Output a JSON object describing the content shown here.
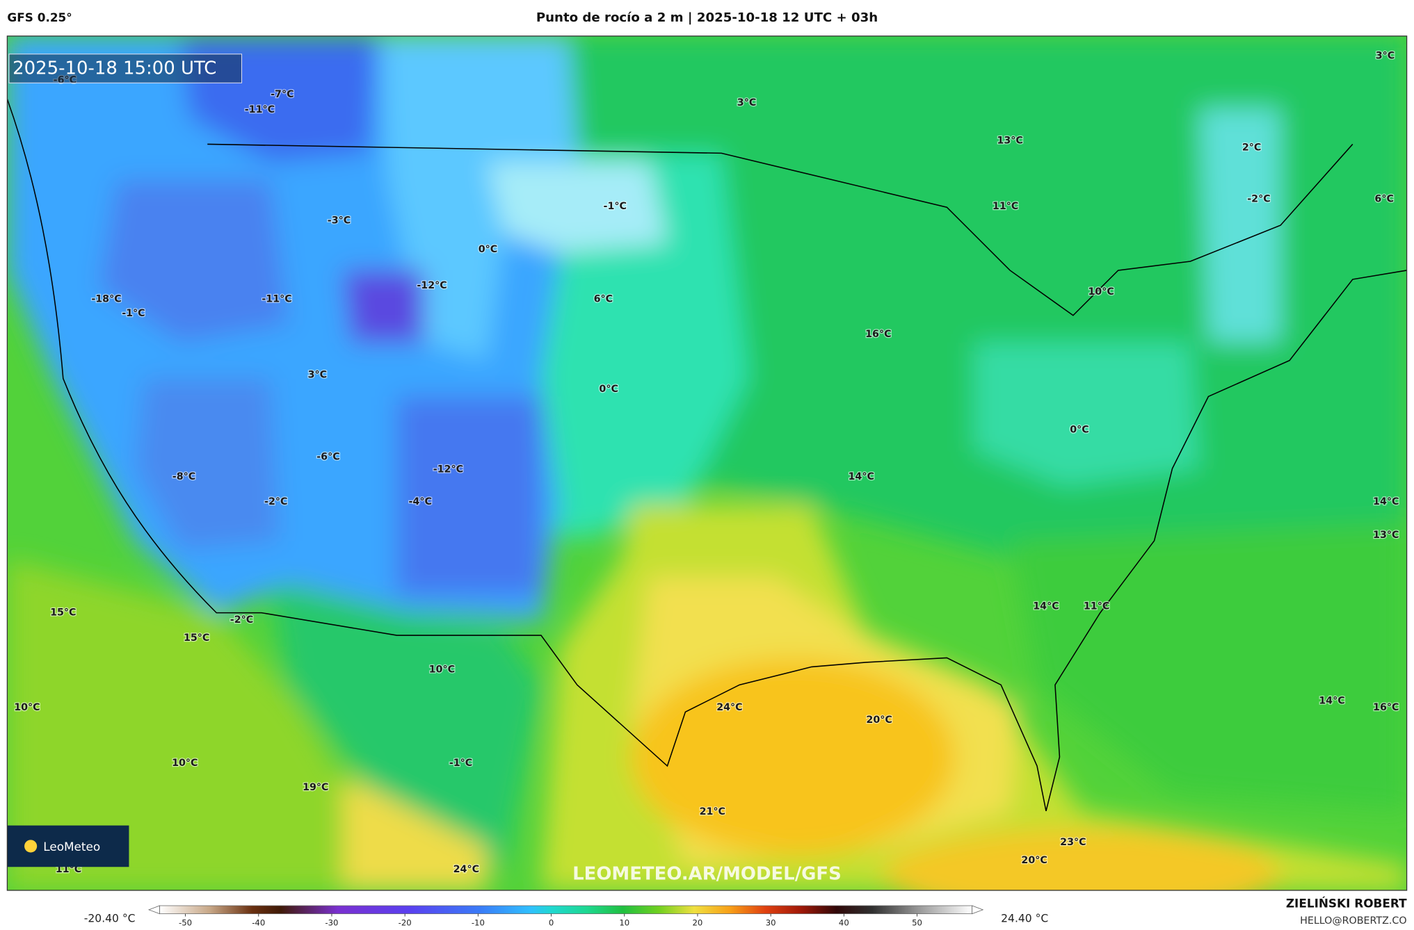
{
  "header": {
    "model": "GFS 0.25°",
    "title": "Punto de rocío a 2 m | 2025-10-18 12 UTC + 03h"
  },
  "map": {
    "timestamp": "2025-10-18 15:00 UTC",
    "labels": [
      "-6°C",
      "-7°C",
      "-11°C",
      "3°C",
      "13°C",
      "2°C",
      "-2°C",
      "6°C",
      "3°C",
      "-1°C",
      "11°C",
      "-3°C",
      "0°C",
      "-12°C",
      "-11°C",
      "-18°C",
      "-1°C",
      "6°C",
      "10°C",
      "16°C",
      "3°C",
      "0°C",
      "0°C",
      "-6°C",
      "-8°C",
      "-12°C",
      "14°C",
      "-2°C",
      "-4°C",
      "14°C",
      "13°C",
      "15°C",
      "-2°C",
      "14°C",
      "11°C",
      "15°C",
      "10°C",
      "24°C",
      "20°C",
      "14°C",
      "16°C",
      "10°C",
      "10°C",
      "-1°C",
      "19°C",
      "21°C",
      "23°C",
      "20°C",
      "24°C",
      "11°C"
    ],
    "watermark": "LEOMETEO.AR/MODEL/GFS",
    "logo": "LeoMeteo"
  },
  "colorbar": {
    "min_label": "-20.40 °C",
    "max_label": "24.40 °C",
    "range": [
      -55,
      59
    ],
    "ticks": [
      -50,
      -40,
      -30,
      -20,
      -10,
      0,
      10,
      20,
      30,
      40,
      50
    ]
  },
  "footer": {
    "author": "ZIELIŃSKI ROBERT",
    "email": "HELLO@ROBERTZ.CO"
  }
}
